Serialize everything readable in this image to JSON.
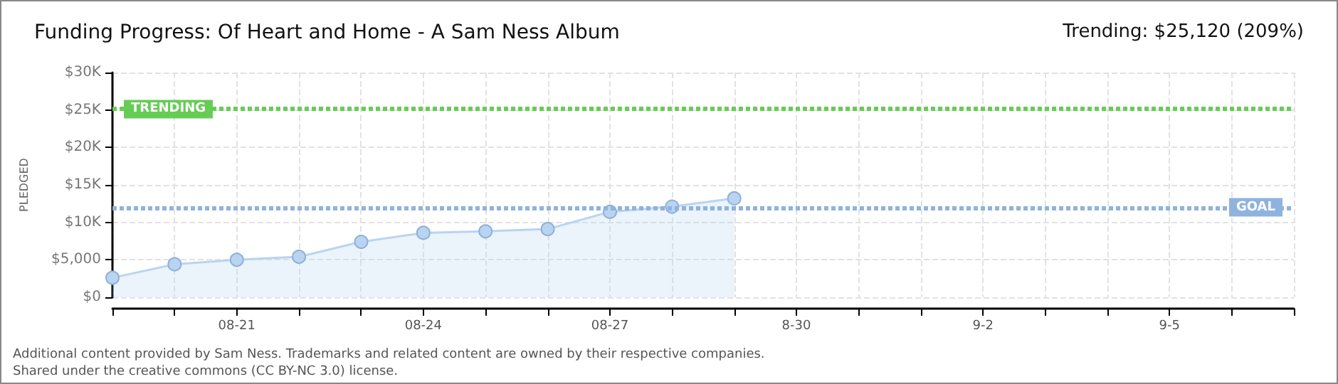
{
  "chart_data": {
    "type": "area",
    "title": "Funding Progress: Of Heart and Home - A Sam Ness Album",
    "subtitle": "Trending: $25,120 (209%)",
    "ylabel": "PLEDGED",
    "x": [
      "--08-19",
      "--08-20",
      "--08-21",
      "--08-22",
      "--08-23",
      "--08-24",
      "--08-25",
      "--08-26",
      "--08-27",
      "--08-28",
      "--08-29"
    ],
    "series": [
      {
        "color": "#b8d4f0",
        "values": [
          2600,
          4400,
          5000,
          5400,
          7400,
          8600,
          8800,
          9100,
          11400,
          12100,
          13200
        ]
      }
    ],
    "xlim": [
      "--08-19",
      "--09-07"
    ],
    "xticks": [
      {
        "value": "--08-19",
        "label": null
      },
      {
        "value": "--08-20",
        "label": null
      },
      {
        "value": "--08-21",
        "label": "08-21"
      },
      {
        "value": "--08-22",
        "label": null
      },
      {
        "value": "--08-23",
        "label": null
      },
      {
        "value": "--08-24",
        "label": "08-24"
      },
      {
        "value": "--08-25",
        "label": null
      },
      {
        "value": "--08-26",
        "label": null
      },
      {
        "value": "--08-27",
        "label": "08-27"
      },
      {
        "value": "--08-28",
        "label": null
      },
      {
        "value": "--08-29",
        "label": null
      },
      {
        "value": "--08-30",
        "label": "8-30"
      },
      {
        "value": "--08-31",
        "label": null
      },
      {
        "value": "--09-01",
        "label": null
      },
      {
        "value": "--09-02",
        "label": "9-2"
      },
      {
        "value": "--09-03",
        "label": null
      },
      {
        "value": "--09-04",
        "label": null
      },
      {
        "value": "--09-05",
        "label": "9-5"
      },
      {
        "value": "--09-06",
        "label": null
      },
      {
        "value": "--09-07",
        "label": null
      }
    ],
    "ylim": [
      0,
      30000
    ],
    "yticks": [
      {
        "value": 0,
        "label": "$0"
      },
      {
        "value": 5000,
        "label": "$5,000"
      },
      {
        "value": 10000,
        "label": "$10K"
      },
      {
        "value": 15000,
        "label": "$15K"
      },
      {
        "value": 20000,
        "label": "$20K"
      },
      {
        "value": 25000,
        "label": "$25K"
      },
      {
        "value": 30000,
        "label": "$30K"
      }
    ],
    "ref_lines": [
      {
        "axis": "y",
        "value": 25120,
        "label": "TRENDING",
        "color": "#66cc55",
        "line_style": "dotted"
      },
      {
        "axis": "y",
        "value": 12000,
        "label": "GOAL",
        "color": "#8fb3dd",
        "line_style": "dotted"
      }
    ],
    "annotations": [
      "Additional content provided by Sam Ness. Trademarks and related content are owned by their respective companies.",
      "Shared under the creative commons (CC BY-NC 3.0) license."
    ],
    "grid": true,
    "marker": "circle"
  }
}
